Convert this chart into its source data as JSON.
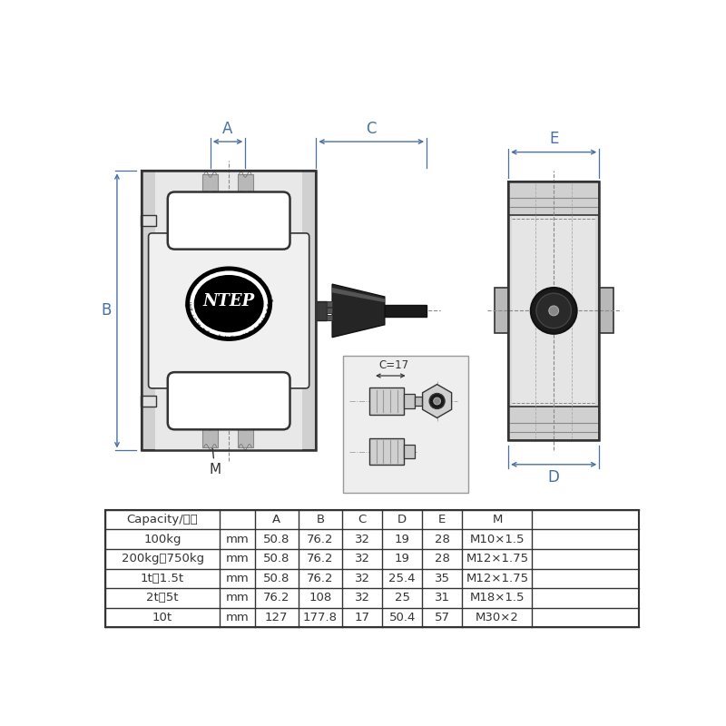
{
  "bg_color": "#ffffff",
  "table_headers": [
    "Capacity/量程",
    "",
    "A",
    "B",
    "C",
    "D",
    "E",
    "M"
  ],
  "table_rows": [
    [
      "100kg",
      "mm",
      "50.8",
      "76.2",
      "32",
      "19",
      "28",
      "M10×1.5"
    ],
    [
      "200kg～750kg",
      "mm",
      "50.8",
      "76.2",
      "32",
      "19",
      "28",
      "M12×1.75"
    ],
    [
      "1t～1.5t",
      "mm",
      "50.8",
      "76.2",
      "32",
      "25.4",
      "35",
      "M12×1.75"
    ],
    [
      "2t～5t",
      "mm",
      "76.2",
      "108",
      "32",
      "25",
      "31",
      "M18×1.5"
    ],
    [
      "10t",
      "mm",
      "127",
      "177.8",
      "17",
      "50.4",
      "57",
      "M30×2"
    ]
  ],
  "line_color": "#333333",
  "dim_color": "#4a6fa5",
  "gray_body": "#c8c8c8",
  "gray_light": "#e0e0e0",
  "gray_white": "#f2f2f2",
  "gray_strip": "#b0b0b0",
  "black": "#111111",
  "dark_gray": "#404040"
}
